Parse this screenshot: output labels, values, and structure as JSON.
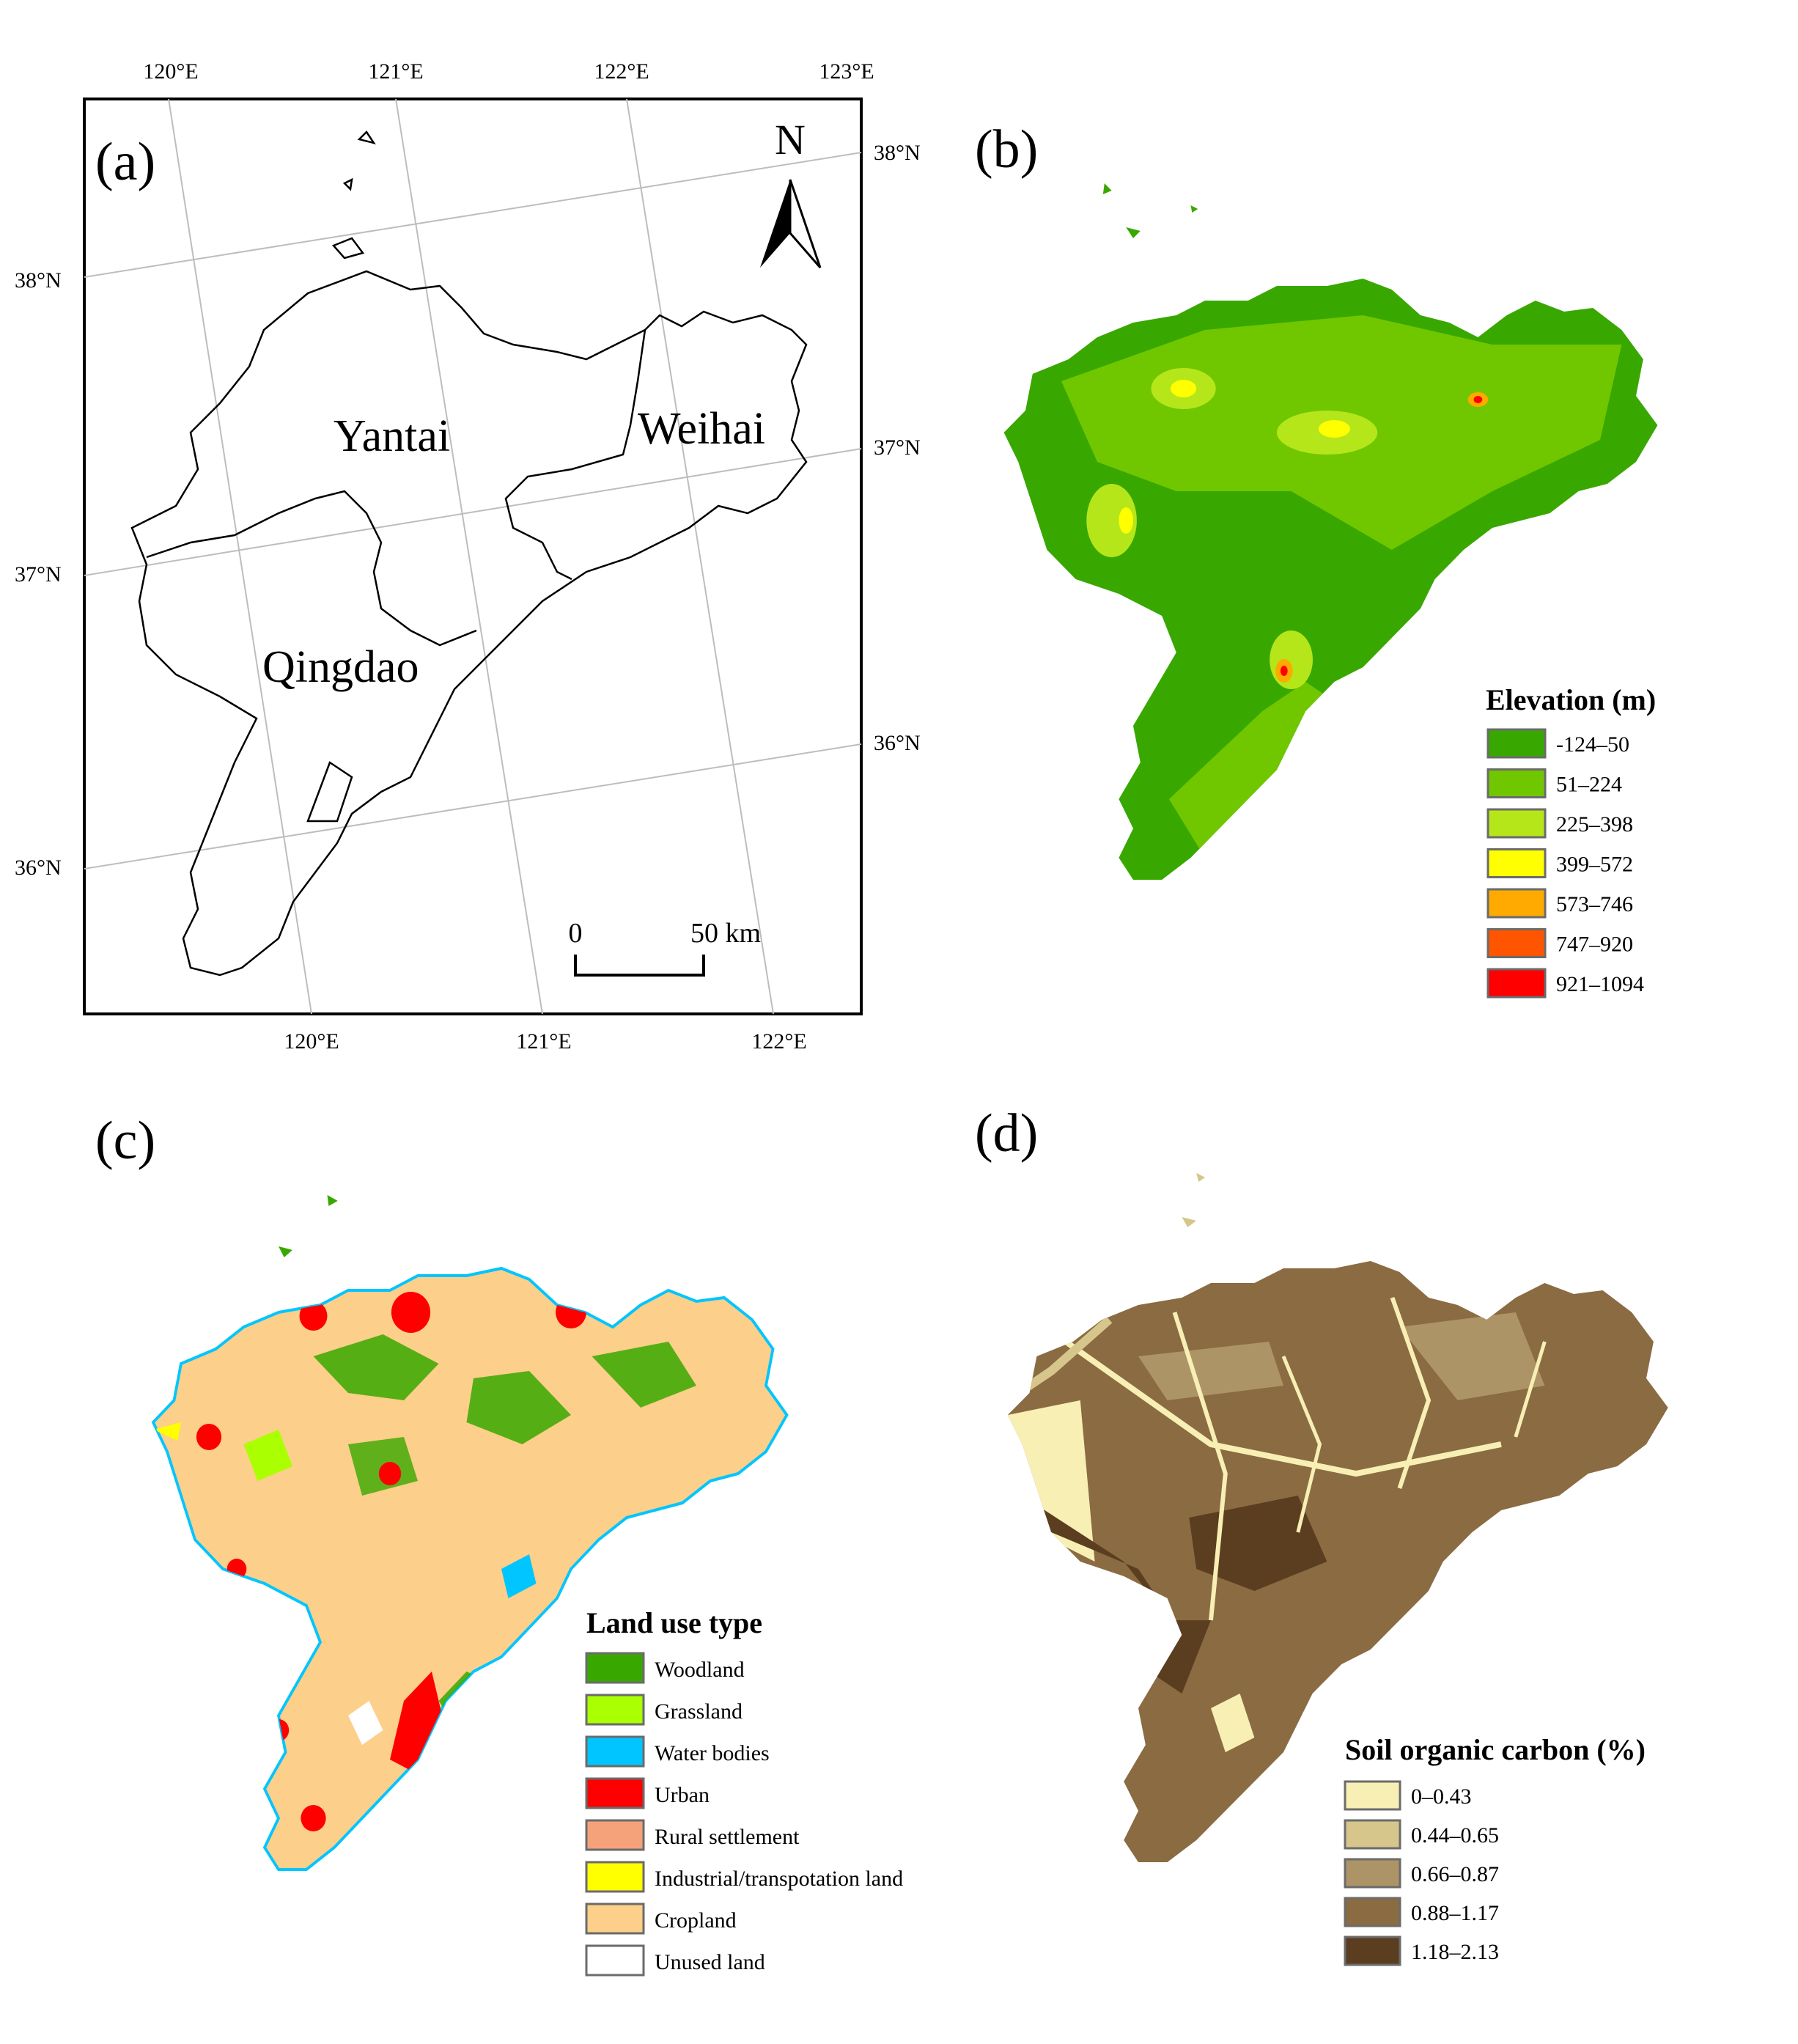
{
  "panels": {
    "a": {
      "label": "(a)",
      "north": "N",
      "top_lon_ticks": [
        "120°E",
        "121°E",
        "122°E",
        "123°E"
      ],
      "bottom_lon_ticks": [
        "120°E",
        "121°E",
        "122°E"
      ],
      "left_lat_ticks": [
        "38°N",
        "37°N",
        "36°N"
      ],
      "right_lat_ticks": [
        "38°N",
        "37°N",
        "36°N"
      ],
      "cities": [
        "Yantai",
        "Weihai",
        "Qingdao"
      ],
      "scale": {
        "zero": "0",
        "end": "50 km"
      }
    },
    "b": {
      "label": "(b)",
      "legend_title": "Elevation (m)",
      "legend": [
        {
          "label": "-124–50",
          "color": "#38a800"
        },
        {
          "label": "51–224",
          "color": "#70c700"
        },
        {
          "label": "225–398",
          "color": "#b5e61a"
        },
        {
          "label": "399–572",
          "color": "#ffff00"
        },
        {
          "label": "573–746",
          "color": "#ffaa00"
        },
        {
          "label": "747–920",
          "color": "#ff5500"
        },
        {
          "label": "921–1094",
          "color": "#ff0000"
        }
      ]
    },
    "c": {
      "label": "(c)",
      "legend_title": "Land use type",
      "legend": [
        {
          "label": "Woodland",
          "color": "#38a800"
        },
        {
          "label": "Grassland",
          "color": "#aaff00"
        },
        {
          "label": "Water bodies",
          "color": "#00c5ff"
        },
        {
          "label": "Urban",
          "color": "#ff0000"
        },
        {
          "label": "Rural settlement",
          "color": "#f5a27a"
        },
        {
          "label": "Industrial/transpotation land",
          "color": "#ffff00"
        },
        {
          "label": "Cropland",
          "color": "#fccf8a"
        },
        {
          "label": "Unused land",
          "color": "#ffffff"
        }
      ]
    },
    "d": {
      "label": "(d)",
      "legend_title": "Soil organic carbon (%)",
      "legend": [
        {
          "label": "0–0.43",
          "color": "#f8efb4"
        },
        {
          "label": "0.44–0.65",
          "color": "#d6c68c"
        },
        {
          "label": "0.66–0.87",
          "color": "#ad9466"
        },
        {
          "label": "0.88–1.17",
          "color": "#8a6b42"
        },
        {
          "label": "1.18–2.13",
          "color": "#5b3e20"
        }
      ]
    }
  }
}
